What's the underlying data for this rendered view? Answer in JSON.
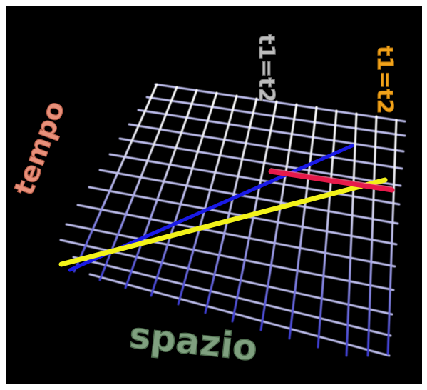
{
  "labels": {
    "time_axis": "tempo",
    "space_axis": "spazio",
    "observer_one_time": "t1=t2",
    "observer_two_time": "t1=t2"
  },
  "colors": {
    "background": "#000000",
    "grid": "#d8d8e8",
    "grid_shadow": "#5a5ad0",
    "world_line_blue": "#1a1ae6",
    "world_line_yellow": "#f2f21a",
    "world_line_red": "#e61a4a",
    "tempo_text": "#e8907a",
    "spazio_text": "#7fa07f",
    "white_label": "#e0e0e0",
    "orange_label": "#f2a31a"
  }
}
